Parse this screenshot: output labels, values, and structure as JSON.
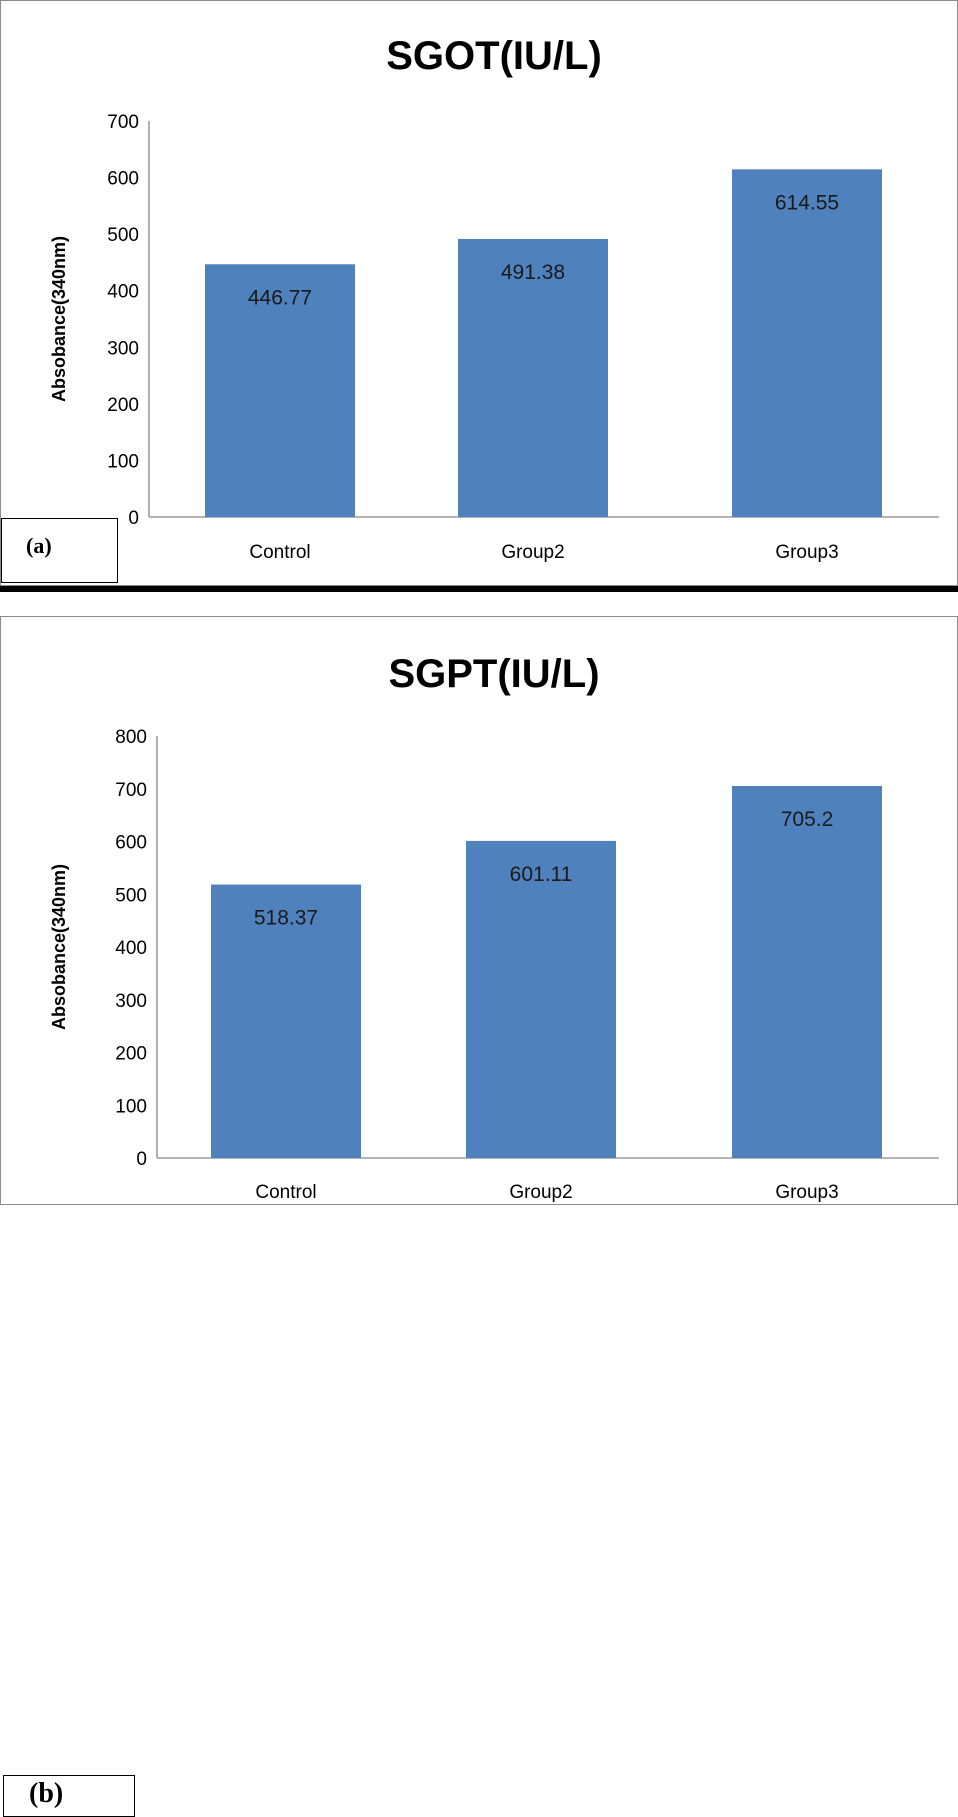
{
  "chart_data": [
    {
      "type": "bar",
      "panel_label": "(a)",
      "title": "SGOT(IU/L)",
      "xlabel": "",
      "ylabel": "Absobance(340nm)",
      "categories": [
        "Control",
        "Group2",
        "Group3"
      ],
      "values": [
        446.77,
        491.38,
        614.55
      ],
      "value_labels": [
        "446.77",
        "491.38",
        "614.55"
      ],
      "ylim": [
        0,
        700
      ],
      "yticks": [
        0,
        100,
        200,
        300,
        400,
        500,
        600,
        700
      ],
      "grid": false,
      "legend": "none",
      "bar_color": "#4f81bd"
    },
    {
      "type": "bar",
      "panel_label": "(b)",
      "title": "SGPT(IU/L)",
      "xlabel": "",
      "ylabel": "Absobance(340nm)",
      "categories": [
        "Control",
        "Group2",
        "Group3"
      ],
      "values": [
        518.37,
        601.11,
        705.2
      ],
      "value_labels": [
        "518.37",
        "601.11",
        "705.2"
      ],
      "ylim": [
        0,
        800
      ],
      "yticks": [
        0,
        100,
        200,
        300,
        400,
        500,
        600,
        700,
        800
      ],
      "grid": false,
      "legend": "none",
      "bar_color": "#4f81bd"
    }
  ]
}
